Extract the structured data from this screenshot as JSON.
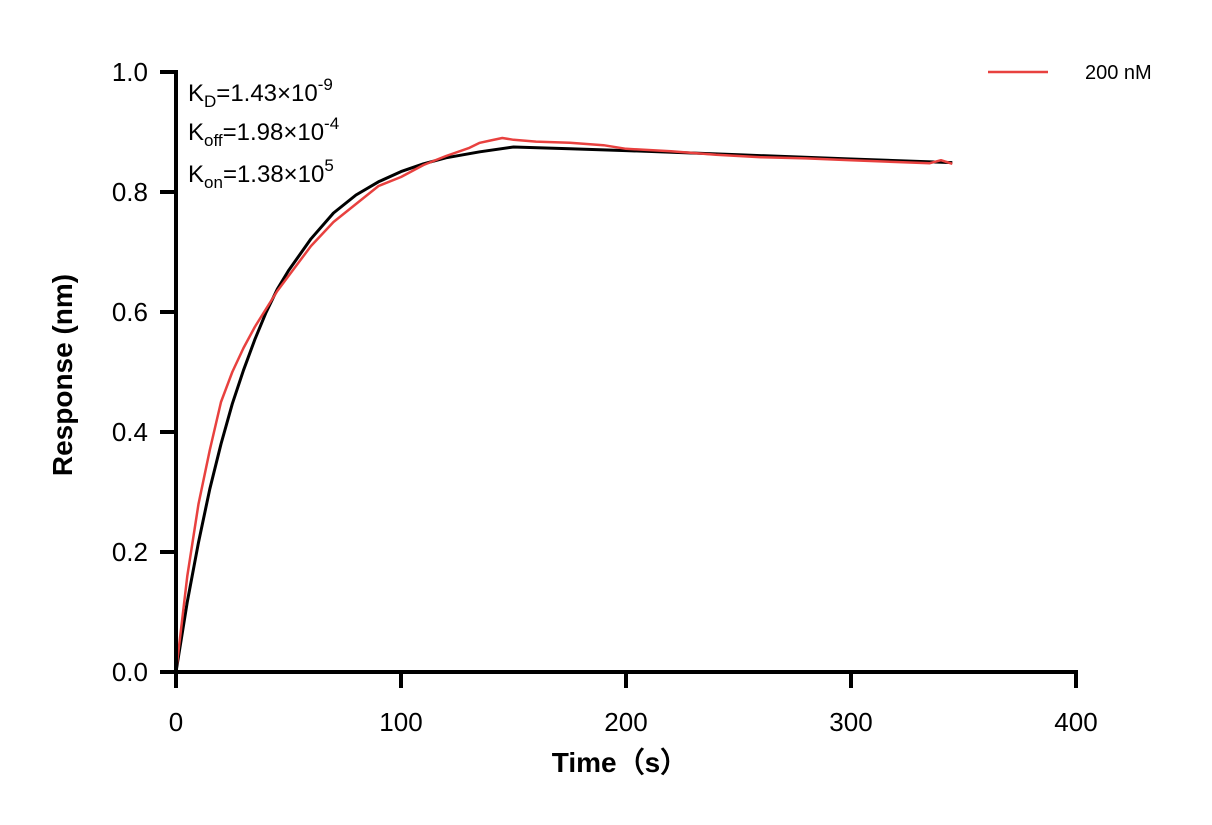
{
  "chart_data": {
    "type": "line",
    "xlabel": "Time（s）",
    "ylabel": "Response (nm)",
    "xlim": [
      0,
      400
    ],
    "ylim": [
      0,
      1.0
    ],
    "xticks": [
      0,
      100,
      200,
      300,
      400
    ],
    "yticks": [
      0.0,
      0.2,
      0.4,
      0.6,
      0.8,
      1.0
    ],
    "xtick_labels": [
      "0",
      "100",
      "200",
      "300",
      "400"
    ],
    "ytick_labels": [
      "0.0",
      "0.2",
      "0.4",
      "0.6",
      "0.8",
      "1.0"
    ],
    "grid": false,
    "legend_position": "top-right",
    "annotations": {
      "kd": {
        "base": "K",
        "sub": "D",
        "value": "=1.43×10",
        "exp": "-9"
      },
      "koff": {
        "base": "K",
        "sub": "off",
        "value": "=1.98×10",
        "exp": "-4"
      },
      "kon": {
        "base": "K",
        "sub": "on",
        "value": "=1.38×10",
        "exp": "5"
      }
    },
    "series": [
      {
        "name": "200 nM",
        "color": "#e8413f",
        "x": [
          0,
          5,
          10,
          15,
          20,
          25,
          30,
          35,
          40,
          45,
          50,
          60,
          70,
          80,
          90,
          100,
          110,
          120,
          130,
          135,
          140,
          145,
          150,
          160,
          175,
          190,
          200,
          220,
          240,
          260,
          280,
          300,
          320,
          335,
          340,
          345
        ],
        "y": [
          0,
          0.16,
          0.28,
          0.37,
          0.45,
          0.5,
          0.54,
          0.575,
          0.605,
          0.635,
          0.66,
          0.71,
          0.75,
          0.78,
          0.81,
          0.825,
          0.845,
          0.86,
          0.873,
          0.882,
          0.886,
          0.89,
          0.887,
          0.884,
          0.882,
          0.878,
          0.872,
          0.868,
          0.862,
          0.858,
          0.856,
          0.853,
          0.85,
          0.848,
          0.853,
          0.847
        ]
      },
      {
        "color": "#000000",
        "x": [
          0,
          5,
          10,
          15,
          20,
          25,
          30,
          35,
          40,
          45,
          50,
          60,
          70,
          80,
          90,
          100,
          110,
          120,
          135,
          150,
          175,
          200,
          250,
          300,
          345
        ],
        "y": [
          0,
          0.117,
          0.216,
          0.305,
          0.38,
          0.447,
          0.503,
          0.554,
          0.599,
          0.638,
          0.669,
          0.722,
          0.765,
          0.795,
          0.817,
          0.834,
          0.847,
          0.857,
          0.867,
          0.875,
          0.872,
          0.869,
          0.862,
          0.855,
          0.849
        ]
      }
    ]
  }
}
